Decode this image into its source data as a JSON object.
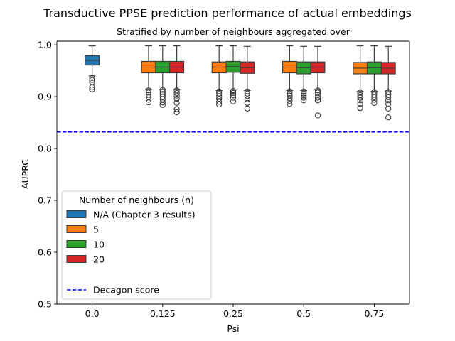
{
  "chart_data": {
    "type": "boxplot",
    "title": "Transductive PPSE prediction performance of actual embeddings",
    "subtitle": "Stratified by number of neighbours aggregated over",
    "xlabel": "Psi",
    "ylabel": "AUPRC",
    "categories": [
      "0.0",
      "0.125",
      "0.25",
      "0.5",
      "0.75"
    ],
    "ylim": [
      0.5,
      1.007
    ],
    "yticks": [
      "0.5",
      "0.6",
      "0.7",
      "0.8",
      "0.9",
      "1.0"
    ],
    "grid": false,
    "legend": {
      "title": "Number of neighbours (n)",
      "placement": "lower-left",
      "entries": [
        "N/A (Chapter 3 results)",
        "5",
        "10",
        "20",
        "",
        "Decagon score"
      ]
    },
    "colors": {
      "N/A (Chapter 3 results)": "#1f77b4",
      "5": "#ff7f0e",
      "10": "#2ca02c",
      "20": "#d62728",
      "decagon": "#0000ff"
    },
    "reference_line": {
      "name": "Decagon score",
      "value": 0.832
    },
    "series": [
      {
        "name": "N/A (Chapter 3 results)",
        "boxes": [
          {
            "category": "0.0",
            "whislo": 0.94,
            "q1": 0.961,
            "median": 0.97,
            "q3": 0.979,
            "whishi": 0.998,
            "fliers": [
              0.936,
              0.932,
              0.928,
              0.918,
              0.914
            ]
          }
        ]
      },
      {
        "name": "5",
        "boxes": [
          {
            "category": "0.125",
            "whislo": 0.914,
            "q1": 0.946,
            "median": 0.957,
            "q3": 0.968,
            "whishi": 0.998,
            "fliers": [
              0.912,
              0.908,
              0.904,
              0.899,
              0.894,
              0.889
            ]
          },
          {
            "category": "0.25",
            "whislo": 0.912,
            "q1": 0.946,
            "median": 0.957,
            "q3": 0.967,
            "whishi": 0.998,
            "fliers": [
              0.91,
              0.906,
              0.901,
              0.896,
              0.89,
              0.885
            ]
          },
          {
            "category": "0.5",
            "whislo": 0.912,
            "q1": 0.946,
            "median": 0.957,
            "q3": 0.968,
            "whishi": 0.998,
            "fliers": [
              0.91,
              0.906,
              0.902,
              0.897,
              0.892,
              0.886
            ]
          },
          {
            "category": "0.75",
            "whislo": 0.91,
            "q1": 0.944,
            "median": 0.955,
            "q3": 0.966,
            "whishi": 0.998,
            "fliers": [
              0.908,
              0.903,
              0.898,
              0.893,
              0.886,
              0.878
            ]
          }
        ]
      },
      {
        "name": "10",
        "boxes": [
          {
            "category": "0.125",
            "whislo": 0.914,
            "q1": 0.946,
            "median": 0.957,
            "q3": 0.968,
            "whishi": 0.998,
            "fliers": [
              0.913,
              0.909,
              0.905,
              0.9,
              0.895,
              0.889,
              0.884
            ]
          },
          {
            "category": "0.25",
            "whislo": 0.913,
            "q1": 0.947,
            "median": 0.958,
            "q3": 0.968,
            "whishi": 0.998,
            "fliers": [
              0.911,
              0.907,
              0.903,
              0.898,
              0.891
            ]
          },
          {
            "category": "0.5",
            "whislo": 0.912,
            "q1": 0.944,
            "median": 0.956,
            "q3": 0.967,
            "whishi": 0.997,
            "fliers": [
              0.91,
              0.906,
              0.902,
              0.898,
              0.893
            ]
          },
          {
            "category": "0.75",
            "whislo": 0.91,
            "q1": 0.944,
            "median": 0.956,
            "q3": 0.967,
            "whishi": 0.998,
            "fliers": [
              0.909,
              0.904,
              0.899,
              0.894,
              0.888
            ]
          }
        ]
      },
      {
        "name": "20",
        "boxes": [
          {
            "category": "0.125",
            "whislo": 0.914,
            "q1": 0.946,
            "median": 0.957,
            "q3": 0.968,
            "whishi": 0.998,
            "fliers": [
              0.912,
              0.907,
              0.902,
              0.896,
              0.888,
              0.876,
              0.87
            ]
          },
          {
            "category": "0.25",
            "whislo": 0.912,
            "q1": 0.945,
            "median": 0.956,
            "q3": 0.967,
            "whishi": 0.997,
            "fliers": [
              0.91,
              0.906,
              0.901,
              0.895,
              0.888,
              0.877
            ]
          },
          {
            "category": "0.5",
            "whislo": 0.914,
            "q1": 0.946,
            "median": 0.957,
            "q3": 0.967,
            "whishi": 0.997,
            "fliers": [
              0.912,
              0.908,
              0.904,
              0.898,
              0.893,
              0.864
            ]
          },
          {
            "category": "0.75",
            "whislo": 0.911,
            "q1": 0.944,
            "median": 0.955,
            "q3": 0.966,
            "whishi": 0.997,
            "fliers": [
              0.909,
              0.904,
              0.899,
              0.893,
              0.886,
              0.877,
              0.86
            ]
          }
        ]
      }
    ]
  }
}
